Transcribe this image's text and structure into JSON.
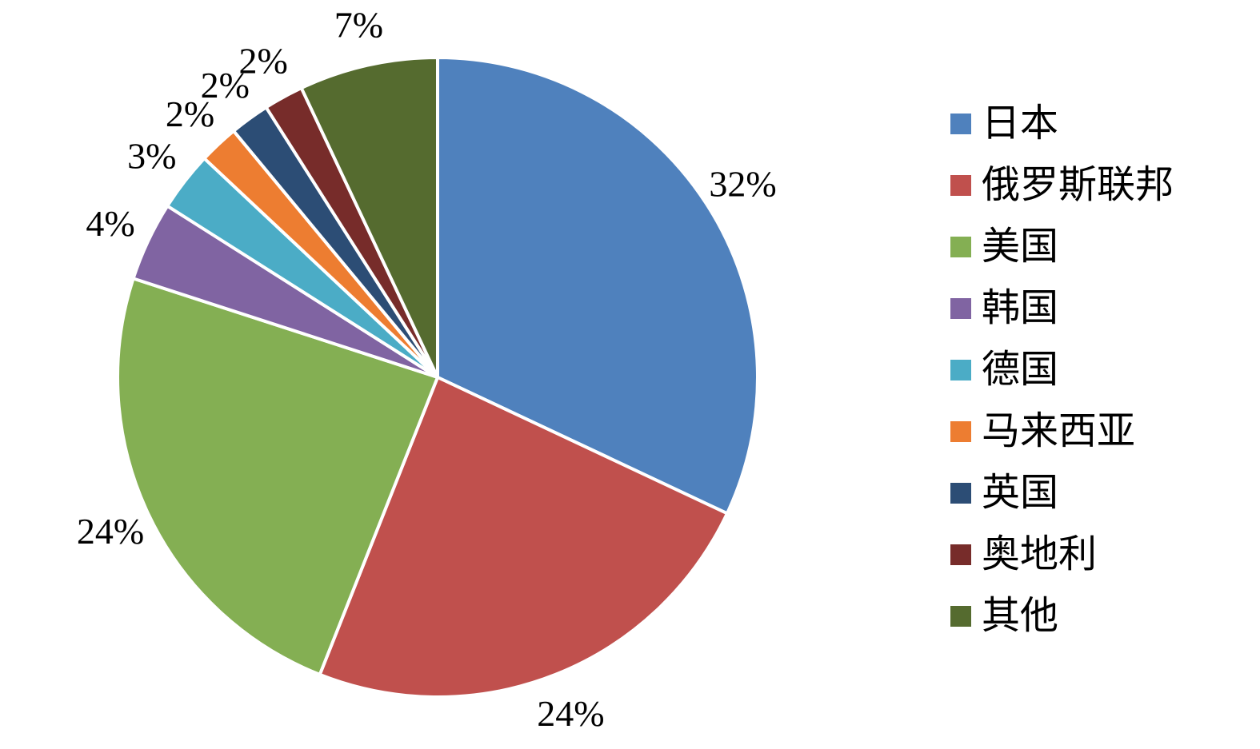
{
  "chart_data": {
    "type": "pie",
    "title": "",
    "legend_position": "right",
    "start_angle_deg": 0,
    "direction": "clockwise",
    "slices": [
      {
        "key": "japan",
        "label": "日本",
        "value": 32,
        "pct_label": "32%",
        "color": "#4F81BD"
      },
      {
        "key": "russia",
        "label": "俄罗斯联邦",
        "value": 24,
        "pct_label": "24%",
        "color": "#C0504D"
      },
      {
        "key": "usa",
        "label": "美国",
        "value": 24,
        "pct_label": "24%",
        "color": "#84AF53"
      },
      {
        "key": "south-korea",
        "label": "韩国",
        "value": 4,
        "pct_label": "4%",
        "color": "#8064A2"
      },
      {
        "key": "germany",
        "label": "德国",
        "value": 3,
        "pct_label": "3%",
        "color": "#4BACC6"
      },
      {
        "key": "malaysia",
        "label": "马来西亚",
        "value": 2,
        "pct_label": "2%",
        "color": "#ED7D31"
      },
      {
        "key": "uk",
        "label": "英国",
        "value": 2,
        "pct_label": "2%",
        "color": "#2C4D75"
      },
      {
        "key": "austria",
        "label": "奥地利",
        "value": 2,
        "pct_label": "2%",
        "color": "#772C2A"
      },
      {
        "key": "other",
        "label": "其他",
        "value": 7,
        "pct_label": "7%",
        "color": "#556B2F"
      }
    ]
  }
}
